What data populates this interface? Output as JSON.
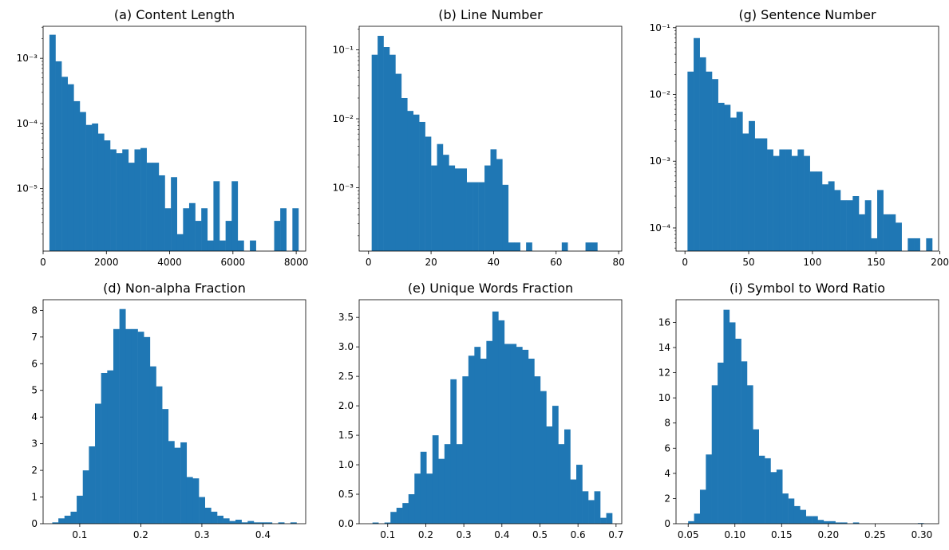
{
  "colors": {
    "bar": "#1f77b4",
    "axis": "#000000",
    "background": "#ffffff"
  },
  "chart_data": [
    {
      "type": "bar",
      "title": "(a) Content Length",
      "yscale": "log",
      "xlim": [
        0,
        8300
      ],
      "ylim": [
        1.1e-06,
        0.0031
      ],
      "xticks": [
        0,
        2000,
        4000,
        6000,
        8000
      ],
      "xtick_labels": [
        "0",
        "2000",
        "4000",
        "6000",
        "8000"
      ],
      "yticks": [
        1e-05,
        0.0001,
        0.001
      ],
      "ytick_labels": [
        "10⁻⁵",
        "10⁻⁴",
        "10⁻³"
      ],
      "bin_start": 200,
      "bin_width": 192,
      "values": [
        0.0023,
        0.0009,
        0.00052,
        0.0004,
        0.00022,
        0.00015,
        9.5e-05,
        0.0001,
        7e-05,
        5.5e-05,
        4e-05,
        3.5e-05,
        4e-05,
        2.5e-05,
        4e-05,
        4.2e-05,
        2.5e-05,
        2.5e-05,
        1.6e-05,
        5e-06,
        1.5e-05,
        2e-06,
        5e-06,
        6e-06,
        3.2e-06,
        5e-06,
        1.6e-06,
        1.3e-05,
        1.6e-06,
        3.2e-06,
        1.3e-05,
        1.6e-06,
        0,
        1.6e-06,
        0,
        0,
        0,
        3.2e-06,
        5e-06,
        0,
        5e-06
      ]
    },
    {
      "type": "bar",
      "title": "(b) Line Number",
      "yscale": "log",
      "xlim": [
        -3,
        81
      ],
      "ylim": [
        0.00012,
        0.22
      ],
      "xticks": [
        0,
        20,
        40,
        60,
        80
      ],
      "xtick_labels": [
        "0",
        "20",
        "40",
        "60",
        "80"
      ],
      "yticks": [
        0.001,
        0.01,
        0.1
      ],
      "ytick_labels": [
        "10⁻³",
        "10⁻²",
        "10⁻¹"
      ],
      "bin_start": 1,
      "bin_width": 1.9,
      "values": [
        0.085,
        0.16,
        0.11,
        0.085,
        0.045,
        0.02,
        0.013,
        0.0115,
        0.009,
        0.0055,
        0.0021,
        0.0043,
        0.003,
        0.0021,
        0.0019,
        0.0019,
        0.0012,
        0.0012,
        0.0012,
        0.0021,
        0.0036,
        0.0026,
        0.0011,
        0.00016,
        0.00016,
        0,
        0.00016,
        0,
        0,
        0,
        0,
        0,
        0.00016,
        0,
        0,
        0,
        0.00016,
        0.00016
      ]
    },
    {
      "type": "bar",
      "title": "(g) Sentence Number",
      "yscale": "log",
      "xlim": [
        -7,
        199
      ],
      "ylim": [
        4.5e-05,
        0.105
      ],
      "xticks": [
        0,
        50,
        100,
        150,
        200
      ],
      "xtick_labels": [
        "0",
        "50",
        "100",
        "150",
        "200"
      ],
      "yticks": [
        0.0001,
        0.001,
        0.01,
        0.1
      ],
      "ytick_labels": [
        "10⁻⁴",
        "10⁻³",
        "10⁻²",
        "10⁻¹"
      ],
      "bin_start": 2,
      "bin_width": 4.8,
      "values": [
        0.022,
        0.07,
        0.036,
        0.022,
        0.017,
        0.0075,
        0.007,
        0.0045,
        0.0055,
        0.0026,
        0.004,
        0.0022,
        0.0022,
        0.0015,
        0.0012,
        0.0015,
        0.0015,
        0.0012,
        0.0015,
        0.0012,
        0.0007,
        0.0007,
        0.00045,
        0.0005,
        0.00037,
        0.00026,
        0.00026,
        0.0003,
        0.00016,
        0.00026,
        7e-05,
        0.00037,
        0.00016,
        0.00016,
        0.00012,
        0,
        7e-05,
        7e-05,
        0,
        7e-05,
        0,
        0,
        0,
        7e-05
      ]
    },
    {
      "type": "bar",
      "title": "(d) Non-alpha Fraction",
      "yscale": "linear",
      "xlim": [
        0.04,
        0.47
      ],
      "ylim": [
        0,
        8.4
      ],
      "xticks": [
        0.1,
        0.2,
        0.3,
        0.4
      ],
      "xtick_labels": [
        "0.1",
        "0.2",
        "0.3",
        "0.4"
      ],
      "yticks": [
        0,
        1,
        2,
        3,
        4,
        5,
        6,
        7,
        8
      ],
      "ytick_labels": [
        "0",
        "1",
        "2",
        "3",
        "4",
        "5",
        "6",
        "7",
        "8"
      ],
      "bin_start": 0.055,
      "bin_width": 0.01,
      "values": [
        0.05,
        0.2,
        0.3,
        0.45,
        1.05,
        2.0,
        2.9,
        4.5,
        5.65,
        5.75,
        7.3,
        8.05,
        7.3,
        7.3,
        7.2,
        7.0,
        5.9,
        5.15,
        4.3,
        3.1,
        2.85,
        3.05,
        1.75,
        1.7,
        1.0,
        0.6,
        0.45,
        0.3,
        0.2,
        0.1,
        0.15,
        0.05,
        0.1,
        0.05,
        0.05,
        0.05,
        0,
        0.05,
        0,
        0.05
      ]
    },
    {
      "type": "bar",
      "title": "(e) Unique Words Fraction",
      "yscale": "linear",
      "xlim": [
        0.025,
        0.715
      ],
      "ylim": [
        0,
        3.8
      ],
      "xticks": [
        0.1,
        0.2,
        0.3,
        0.4,
        0.5,
        0.6,
        0.7
      ],
      "xtick_labels": [
        "0.1",
        "0.2",
        "0.3",
        "0.4",
        "0.5",
        "0.6",
        "0.7"
      ],
      "yticks": [
        0,
        0.5,
        1.0,
        1.5,
        2.0,
        2.5,
        3.0,
        3.5
      ],
      "ytick_labels": [
        "0.0",
        "0.5",
        "1.0",
        "1.5",
        "2.0",
        "2.5",
        "3.0",
        "3.5"
      ],
      "bin_start": 0.06,
      "bin_width": 0.01575,
      "values": [
        0.02,
        0,
        0.02,
        0.2,
        0.27,
        0.35,
        0.5,
        0.85,
        1.22,
        0.85,
        1.5,
        1.1,
        1.35,
        2.45,
        1.35,
        2.5,
        2.85,
        3.0,
        2.8,
        3.1,
        3.6,
        3.45,
        3.05,
        3.05,
        3.0,
        2.95,
        2.8,
        2.5,
        2.25,
        1.65,
        2.0,
        1.35,
        1.6,
        0.75,
        1.0,
        0.55,
        0.4,
        0.55,
        0.1,
        0.18
      ]
    },
    {
      "type": "bar",
      "title": "(i) Symbol to Word Ratio",
      "yscale": "linear",
      "xlim": [
        0.037,
        0.318
      ],
      "ylim": [
        0,
        17.8
      ],
      "xticks": [
        0.05,
        0.1,
        0.15,
        0.2,
        0.25,
        0.3
      ],
      "xtick_labels": [
        "0.05",
        "0.10",
        "0.15",
        "0.20",
        "0.25",
        "0.30"
      ],
      "yticks": [
        0,
        2,
        4,
        6,
        8,
        10,
        12,
        14,
        16
      ],
      "ytick_labels": [
        "0",
        "2",
        "4",
        "6",
        "8",
        "10",
        "12",
        "14",
        "16"
      ],
      "bin_start": 0.05,
      "bin_width": 0.0063,
      "values": [
        0.2,
        0.8,
        2.7,
        5.5,
        11.0,
        12.8,
        17.0,
        16.0,
        14.7,
        12.9,
        11.0,
        7.5,
        5.4,
        5.2,
        4.1,
        4.3,
        2.4,
        2.0,
        1.4,
        1.1,
        0.6,
        0.6,
        0.3,
        0.2,
        0.2,
        0.1,
        0.1,
        0,
        0.1,
        0,
        0,
        0,
        0,
        0,
        0,
        0,
        0,
        0,
        0,
        0.05
      ]
    }
  ]
}
